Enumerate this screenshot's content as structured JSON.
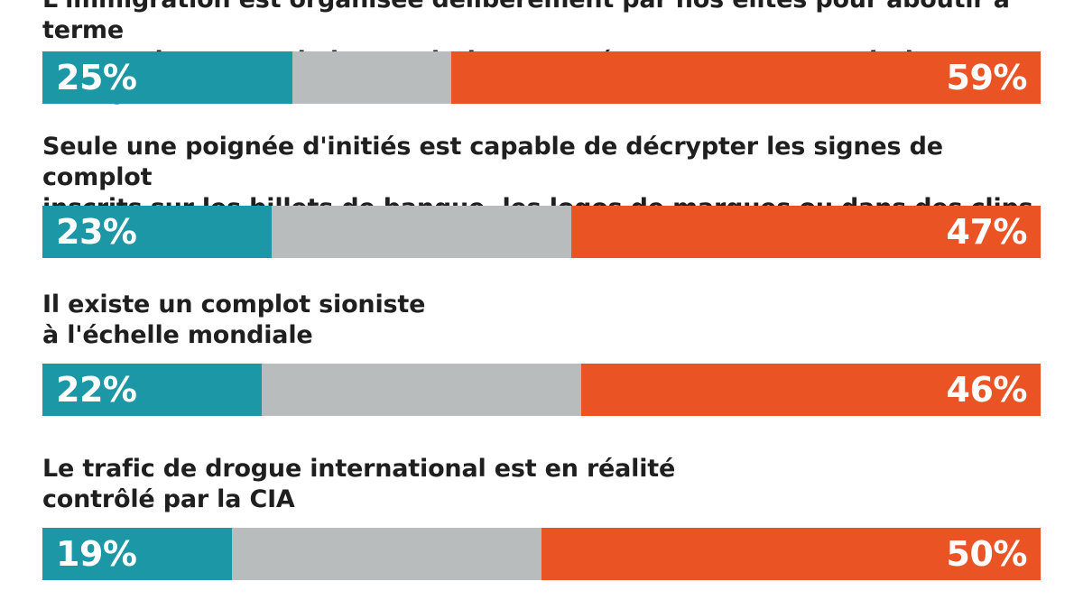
{
  "colors": {
    "agree": "#1b97a6",
    "neutral": "#b8bcbc",
    "disagree": "#ea5324"
  },
  "chart_data": {
    "type": "bar",
    "stacked": true,
    "orientation": "horizontal",
    "categories": [
      "L'immigration est organisée délibérement par nos élites pour aboutir à terme\nau remplacement de la population européenne par une population immigrée",
      "Seule une poignée d'initiés est capable de décrypter les signes de complot\ninscrits sur les billets de banque, les logos de marques ou dans des clips",
      "Il existe un complot sioniste\nà l'échelle mondiale",
      "Le trafic de drogue international est en réalité\ncontrôlé par la CIA"
    ],
    "series": [
      {
        "values": [
          25,
          23,
          22,
          19
        ],
        "labels": [
          "25%",
          "23%",
          "22%",
          "19%"
        ]
      },
      {
        "values": [
          16,
          30,
          32,
          31
        ],
        "labels": [
          "",
          "",
          "",
          ""
        ]
      },
      {
        "values": [
          59,
          47,
          46,
          50
        ],
        "labels": [
          "59%",
          "47%",
          "46%",
          "50%"
        ]
      }
    ],
    "xlim": [
      0,
      100
    ]
  }
}
